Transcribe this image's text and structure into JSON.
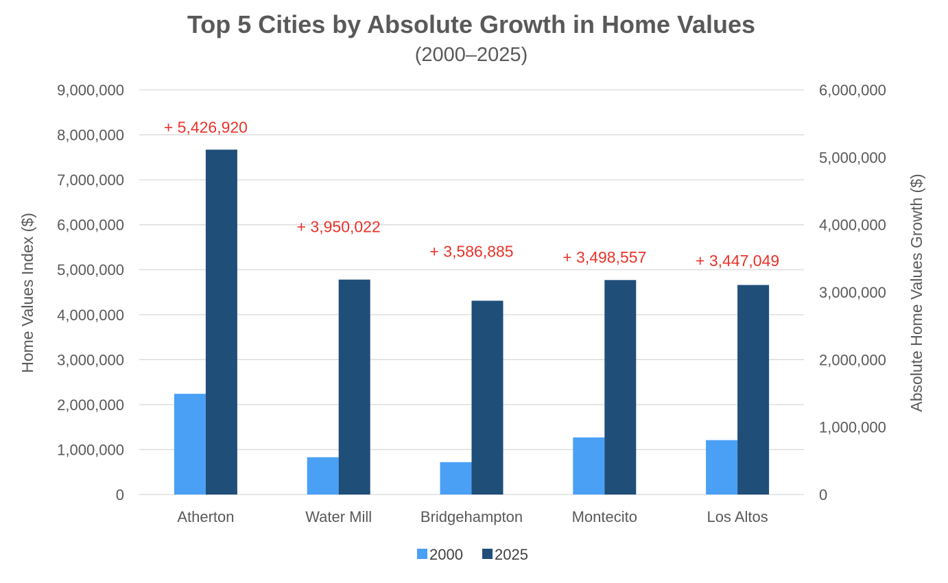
{
  "chart_data": {
    "type": "bar",
    "title": "Top 5 Cities by Absolute Growth in Home Values",
    "subtitle": "(2000–2025)",
    "ylabel": "Home Values Index ($)",
    "y2label": "Absolute Home Values Growth ($)",
    "ylim": [
      0,
      9000000
    ],
    "y2lim": [
      0,
      6000000
    ],
    "yticks": [
      "9,000,000",
      "8,000,000",
      "7,000,000",
      "6,000,000",
      "5,000,000",
      "4,000,000",
      "3,000,000",
      "2,000,000",
      "1,000,000",
      "0"
    ],
    "y2ticks": [
      "6,000,000",
      "5,000,000",
      "4,000,000",
      "3,000,000",
      "2,000,000",
      "1,000,000",
      "0"
    ],
    "categories": [
      "Atherton",
      "Water Mill",
      "Bridgehampton",
      "Montecito",
      "Los Altos"
    ],
    "series": [
      {
        "name": "2000",
        "color": "#4aa0f5",
        "values": [
          2240000,
          830000,
          720000,
          1270000,
          1210000
        ]
      },
      {
        "name": "2025",
        "color": "#1f4e79",
        "values": [
          7670000,
          4780000,
          4310000,
          4770000,
          4660000
        ]
      }
    ],
    "growth_labels": [
      "+ 5,426,920",
      "+ 3,950,022",
      "+ 3,586,885",
      "+ 3,498,557",
      "+  3,447,049"
    ],
    "growth_values": [
      5426920,
      3950022,
      3586885,
      3498557,
      3447049
    ],
    "grid": true,
    "legend_position": "bottom"
  }
}
